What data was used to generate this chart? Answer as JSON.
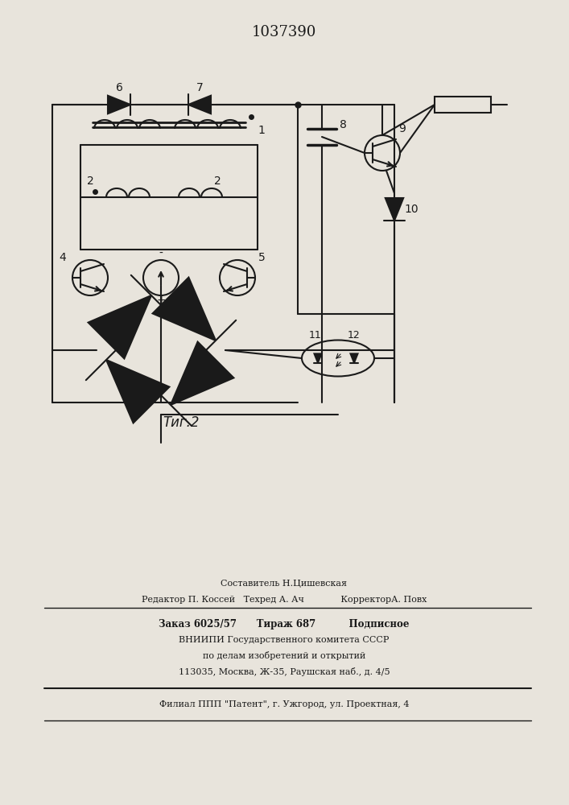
{
  "title": "1037390",
  "fig_label": "Τиг.2",
  "background_color": "#e8e4dc",
  "line_color": "#1a1a1a",
  "footer_lines": [
    "Составитель Н.Цишевская",
    "Редактор П. Коссей   Техред А. Ач             КорректорА. Повх",
    "Заказ 6025/57      Тираж 687          Подписное",
    "ВНИИПИ Государственного комитета СССР",
    "по делам изобретений и открытий",
    "113035, Москва, Ж-35, Раушская наб., д. 4/5",
    "Филиал ППП \"Патент\", г. Ужгород, ул. Проектная, 4"
  ]
}
